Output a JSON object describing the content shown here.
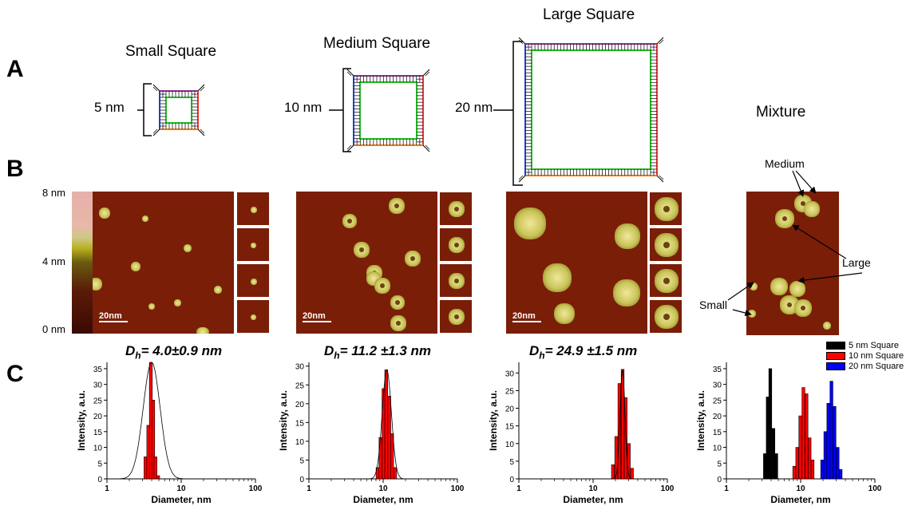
{
  "panel_labels": {
    "a": "A",
    "b": "B",
    "c": "C"
  },
  "squares": {
    "small_title": "Small Square",
    "medium_title": "Medium Square",
    "large_title": "Large Square",
    "mixture_title": "Mixture",
    "small_dim": "5 nm",
    "medium_dim": "10 nm",
    "large_dim": "20 nm"
  },
  "colorbar": {
    "top": "8 nm",
    "mid": "4 nm",
    "bottom": "0 nm"
  },
  "afm": {
    "scale_label": "20nm",
    "arrows": {
      "medium": "Medium",
      "large": "Large",
      "small": "Small"
    }
  },
  "histograms": {
    "dh": [
      "4.0±0.9 nm",
      "11.2 ±1.3 nm",
      "24.9 ±1.5 nm"
    ],
    "dh_symbol": "D",
    "dh_sub": "h",
    "dh_eq": "= ",
    "xlabel": "Diameter, nm",
    "ylabel": "Intensity, a.u.",
    "legend": [
      "5 nm Square",
      "10 nm Square",
      "20 nm Square"
    ],
    "colors": {
      "black": "#000000",
      "red": "#ff0000",
      "blue": "#0000ff"
    }
  },
  "chart_data": [
    {
      "type": "bar",
      "xscale": "log",
      "xlim": [
        1,
        100
      ],
      "ylim": [
        0,
        37
      ],
      "yticks": [
        0,
        5,
        10,
        15,
        20,
        25,
        30,
        35
      ],
      "xticks": [
        "1",
        "10",
        "100"
      ],
      "xlabel": "Diameter, nm",
      "ylabel": "Intensity, a.u.",
      "series": [
        {
          "color": "#ff0000",
          "x": [
            3.3,
            3.6,
            3.9,
            4.2,
            4.5,
            4.9
          ],
          "values": [
            7,
            17,
            37,
            25,
            7,
            1
          ]
        }
      ],
      "fit_peak": 4.0,
      "fit_sigma": 0.9,
      "fit_max": 37
    },
    {
      "type": "bar",
      "xscale": "log",
      "xlim": [
        1,
        100
      ],
      "ylim": [
        0,
        31
      ],
      "yticks": [
        0,
        5,
        10,
        15,
        20,
        25,
        30
      ],
      "xticks": [
        "1",
        "10",
        "100"
      ],
      "xlabel": "Diameter, nm",
      "ylabel": "Intensity, a.u.",
      "series": [
        {
          "color": "#ff0000",
          "x": [
            8.4,
            9.2,
            10.1,
            11.0,
            12.1,
            13.2,
            14.5
          ],
          "values": [
            3,
            11,
            24,
            29,
            22,
            12,
            3
          ]
        }
      ],
      "fit_peak": 11.2,
      "fit_sigma": 1.3,
      "fit_max": 29
    },
    {
      "type": "bar",
      "xscale": "log",
      "xlim": [
        1,
        100
      ],
      "ylim": [
        0,
        33
      ],
      "yticks": [
        0,
        5,
        10,
        15,
        20,
        25,
        30
      ],
      "xticks": [
        "1",
        "10",
        "100"
      ],
      "xlabel": "Diameter, nm",
      "ylabel": "Intensity, a.u.",
      "series": [
        {
          "color": "#ff0000",
          "x": [
            18.5,
            20.5,
            22.6,
            25.0,
            27.5,
            30.3,
            33.4
          ],
          "values": [
            4,
            12,
            27,
            31,
            23,
            10,
            3
          ]
        }
      ],
      "fit_peak": 24.9,
      "fit_sigma": 1.5,
      "fit_max": 31
    },
    {
      "type": "bar",
      "xscale": "log",
      "xlim": [
        1,
        100
      ],
      "ylim": [
        0,
        37
      ],
      "yticks": [
        0,
        5,
        10,
        15,
        20,
        25,
        30,
        35
      ],
      "xticks": [
        "1",
        "10",
        "100"
      ],
      "xlabel": "Diameter, nm",
      "ylabel": "Intensity, a.u.",
      "series": [
        {
          "name": "5 nm Square",
          "color": "#000000",
          "x": [
            3.3,
            3.6,
            3.9,
            4.3,
            4.7
          ],
          "values": [
            8,
            26,
            35,
            16,
            8
          ]
        },
        {
          "name": "10 nm Square",
          "color": "#ff0000",
          "x": [
            8.2,
            9.0,
            9.9,
            10.9,
            12.0,
            13.2,
            14.5
          ],
          "values": [
            4,
            10,
            20,
            29,
            27,
            13,
            6
          ]
        },
        {
          "name": "20 nm Square",
          "color": "#0000ff",
          "x": [
            19.5,
            21.5,
            23.6,
            26.0,
            28.6,
            31.5,
            34.6
          ],
          "values": [
            6,
            15,
            24,
            31,
            23,
            10,
            3
          ]
        }
      ]
    }
  ]
}
